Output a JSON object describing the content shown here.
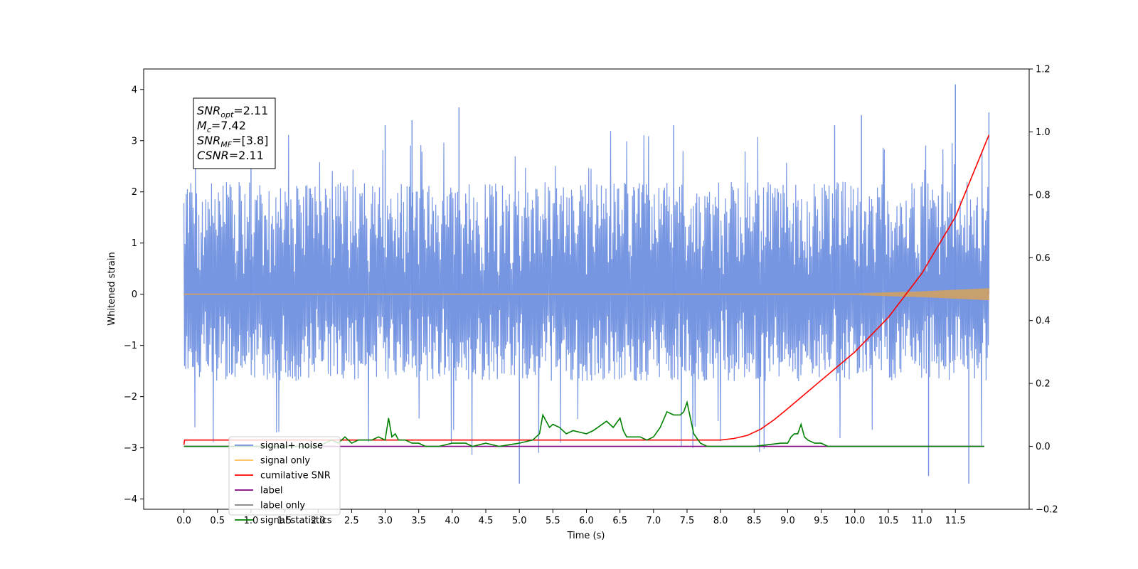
{
  "chart_data": {
    "type": "line",
    "xlabel": "Time (s)",
    "ylabel": "Whitened strain",
    "xlim": [
      -0.6,
      12.6
    ],
    "ylim": [
      -4.2,
      4.4
    ],
    "y2lim": [
      -0.2,
      1.2
    ],
    "x_ticks": [
      "0.0",
      "0.5",
      "1.0",
      "1.5",
      "2.0",
      "2.5",
      "3.0",
      "3.5",
      "4.0",
      "4.5",
      "5.0",
      "5.5",
      "6.0",
      "6.5",
      "7.0",
      "7.5",
      "8.0",
      "8.5",
      "9.0",
      "9.5",
      "10.0",
      "10.5",
      "11.0",
      "11.5"
    ],
    "y_ticks": [
      "4",
      "3",
      "2",
      "1",
      "0",
      "−1",
      "−2",
      "−3",
      "−4"
    ],
    "y2_ticks": [
      "1.2",
      "1.0",
      "0.8",
      "0.6",
      "0.4",
      "0.2",
      "0.0",
      "−0.2"
    ],
    "annotation": {
      "lines": [
        {
          "base": "SNR",
          "sub": "opt",
          "rest": "=2.11"
        },
        {
          "base": "M",
          "sub": "c",
          "rest": "=7.42"
        },
        {
          "base": "SNR",
          "sub": "MF",
          "rest": "=[3.8]"
        },
        {
          "base": "CSNR",
          "sub": "",
          "rest": "=2.11"
        }
      ]
    },
    "legend": {
      "placement": "lower-left",
      "entries": [
        {
          "label": "signal+ noise",
          "color": "#7090e0"
        },
        {
          "label": "signal only",
          "color": "#ffbf52"
        },
        {
          "label": "cumilative SNR",
          "color": "#ff0000"
        },
        {
          "label": "label",
          "color": "#800080"
        },
        {
          "label": "label only",
          "color": "#808080"
        },
        {
          "label": "signal statistics",
          "color": "#008000"
        }
      ]
    },
    "series": [
      {
        "name": "signal+ noise",
        "axis": "left",
        "color": "#7090e0",
        "style": "noise",
        "x_range": [
          0.0,
          12.0
        ],
        "typical_range": [
          -1.7,
          2.2
        ],
        "peaks": [
          [
            1.0,
            2.6
          ],
          [
            3.0,
            3.3
          ],
          [
            3.4,
            3.4
          ],
          [
            4.1,
            3.65
          ],
          [
            5.0,
            -3.7
          ],
          [
            7.3,
            3.3
          ],
          [
            9.7,
            3.3
          ],
          [
            10.1,
            3.5
          ],
          [
            11.1,
            -3.55
          ],
          [
            11.5,
            4.1
          ],
          [
            11.7,
            -3.7
          ],
          [
            12.0,
            3.55
          ]
        ]
      },
      {
        "name": "signal only",
        "axis": "left",
        "color": "#ffbf52",
        "style": "chirp",
        "x": [
          0,
          10.0,
          10.5,
          11.0,
          11.5,
          12.0
        ],
        "amplitude": [
          0.005,
          0.01,
          0.03,
          0.05,
          0.08,
          0.11
        ]
      },
      {
        "name": "cumilative SNR",
        "axis": "right",
        "color": "#ff0000",
        "x": [
          0.0,
          0.01,
          8.0,
          8.2,
          8.4,
          8.6,
          8.8,
          9.0,
          9.5,
          10.0,
          10.5,
          11.0,
          11.5,
          12.0
        ],
        "y": [
          0.005,
          0.02,
          0.02,
          0.025,
          0.035,
          0.055,
          0.085,
          0.12,
          0.21,
          0.3,
          0.41,
          0.55,
          0.73,
          0.99
        ]
      },
      {
        "name": "label",
        "axis": "right",
        "color": "#800080",
        "x": [
          0.0,
          11.93
        ],
        "y": [
          0.0,
          0.0
        ]
      },
      {
        "name": "signal statistics",
        "axis": "right",
        "color": "#008000",
        "x": [
          0.0,
          1.5,
          2.0,
          2.2,
          2.3,
          2.4,
          2.5,
          2.6,
          2.8,
          2.9,
          3.0,
          3.05,
          3.1,
          3.15,
          3.2,
          3.3,
          3.4,
          3.5,
          3.6,
          3.8,
          4.0,
          4.2,
          4.3,
          4.5,
          4.7,
          5.0,
          5.2,
          5.3,
          5.35,
          5.45,
          5.5,
          5.6,
          5.7,
          5.8,
          6.0,
          6.1,
          6.3,
          6.4,
          6.5,
          6.55,
          6.6,
          6.8,
          6.9,
          7.0,
          7.1,
          7.2,
          7.3,
          7.4,
          7.45,
          7.5,
          7.55,
          7.6,
          7.7,
          7.8,
          8.0,
          8.5,
          8.9,
          9.0,
          9.05,
          9.1,
          9.15,
          9.2,
          9.25,
          9.3,
          9.4,
          9.5,
          9.6,
          9.8,
          10.0,
          11.0,
          11.93
        ],
        "y": [
          0.0,
          0.0,
          0.0,
          0.02,
          0.01,
          0.03,
          0.01,
          0.02,
          0.02,
          0.03,
          0.02,
          0.09,
          0.03,
          0.04,
          0.02,
          0.02,
          0.01,
          0.01,
          0.0,
          0.0,
          0.01,
          0.01,
          0.0,
          0.01,
          0.0,
          0.01,
          0.02,
          0.04,
          0.1,
          0.06,
          0.07,
          0.06,
          0.04,
          0.05,
          0.04,
          0.05,
          0.08,
          0.06,
          0.09,
          0.05,
          0.03,
          0.03,
          0.02,
          0.03,
          0.06,
          0.11,
          0.1,
          0.1,
          0.11,
          0.14,
          0.09,
          0.04,
          0.01,
          0.0,
          0.0,
          0.0,
          0.01,
          0.01,
          0.03,
          0.04,
          0.04,
          0.07,
          0.03,
          0.02,
          0.01,
          0.01,
          0.0,
          0.0,
          0.0,
          0.0,
          0.0
        ]
      }
    ]
  }
}
